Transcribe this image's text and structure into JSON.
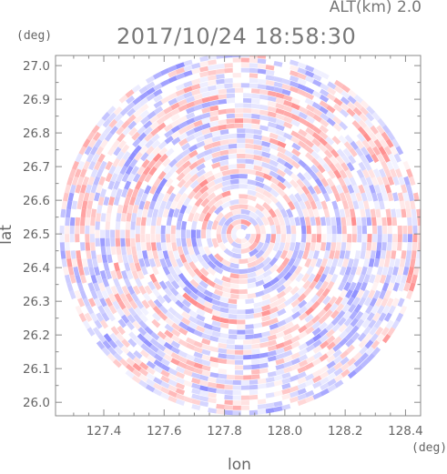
{
  "header": {
    "altitude": "ALT(km) 2.0",
    "datetime": "2017/10/24 18:58:30"
  },
  "chart_data": {
    "type": "heatmap",
    "title": "2017/10/24 18:58:30",
    "subtitle": "ALT(km) 2.0",
    "xlabel": "lon",
    "ylabel": "lat",
    "x_unit": "(deg)",
    "y_unit": "(deg)",
    "xlim": [
      127.24,
      128.45
    ],
    "ylim": [
      25.96,
      27.03
    ],
    "x_ticks": [
      "127.4",
      "127.6",
      "127.8",
      "128.0",
      "128.2",
      "128.4"
    ],
    "y_ticks": [
      "26.0",
      "26.1",
      "26.2",
      "26.3",
      "26.4",
      "26.5",
      "26.6",
      "26.7",
      "26.8",
      "26.9",
      "27.0"
    ],
    "center": {
      "lon": 127.855,
      "lat": 26.5
    },
    "radius_deg_lat": 0.54,
    "colorscale": {
      "negative": "#8f8fff",
      "zero": "#ffffff",
      "positive": "#ff8f8f"
    },
    "grid": false,
    "legend": "none"
  }
}
